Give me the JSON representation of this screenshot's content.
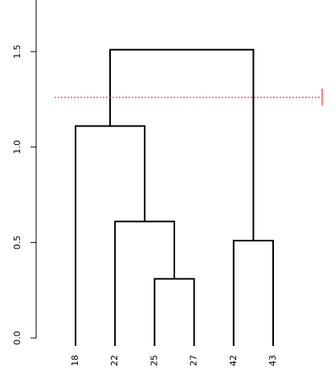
{
  "chart_data": {
    "type": "dendrogram",
    "labels": [
      "18",
      "22",
      "25",
      "27",
      "42",
      "43"
    ],
    "merges": [
      {
        "join": [
          {
            "leaf": 2
          },
          {
            "leaf": 3
          }
        ],
        "height": 0.31
      },
      {
        "join": [
          {
            "leaf": 1
          },
          {
            "merge": 0
          }
        ],
        "height": 0.61
      },
      {
        "join": [
          {
            "leaf": 0
          },
          {
            "merge": 1
          }
        ],
        "height": 1.11
      },
      {
        "join": [
          {
            "leaf": 4
          },
          {
            "leaf": 5
          }
        ],
        "height": 0.51
      },
      {
        "join": [
          {
            "merge": 2
          },
          {
            "merge": 3
          }
        ],
        "height": 1.51
      }
    ],
    "color": "#000000",
    "cut": {
      "height": 1.26,
      "color": "#ff0000"
    },
    "ylim": [
      0,
      1.77
    ],
    "yticks": [
      {
        "value": 0,
        "label": "0.0"
      },
      0.5,
      {
        "value": 1,
        "label": "1.0"
      },
      1.5
    ]
  }
}
